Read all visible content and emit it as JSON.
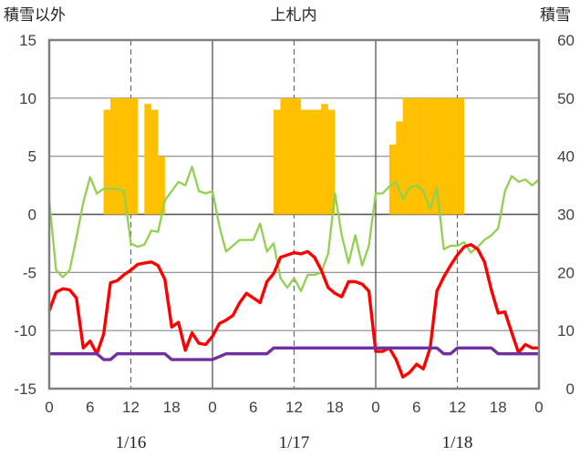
{
  "chart_data": {
    "type": "combo",
    "title": "上札内",
    "ylabel_left": "積雪以外",
    "ylabel_right": "積雪",
    "ylim_left": [
      -15,
      15
    ],
    "ylim_right": [
      0,
      60
    ],
    "yticks_left": [
      "15",
      "10",
      "5",
      "0",
      "-5",
      "-10",
      "-15"
    ],
    "yticks_right": [
      "60",
      "50",
      "40",
      "30",
      "20",
      "10",
      "0"
    ],
    "xlim": [
      0,
      72
    ],
    "xticks": [
      "0",
      "6",
      "12",
      "18",
      "0",
      "6",
      "12",
      "18",
      "0",
      "6",
      "12",
      "18",
      "0"
    ],
    "day_labels": [
      "1/16",
      "1/17",
      "1/18"
    ],
    "grid": true,
    "series": [
      {
        "name": "積雪",
        "type": "bar",
        "axis": "right",
        "color": "#FFC000",
        "x": [
          8,
          9,
          10,
          11,
          12,
          13,
          14,
          15,
          16,
          33,
          34,
          35,
          36,
          37,
          38,
          39,
          40,
          41,
          50,
          51,
          52,
          53,
          54,
          55,
          56,
          57,
          58,
          59,
          60
        ],
        "values": [
          48,
          50,
          50,
          50,
          50,
          30,
          49,
          48,
          40,
          48,
          50,
          50,
          50,
          48,
          48,
          48,
          49,
          48,
          42,
          46,
          50,
          50,
          50,
          50,
          50,
          50,
          50,
          50,
          50
        ]
      },
      {
        "name": "green",
        "type": "line",
        "axis": "left",
        "color": "#92D050",
        "x": [
          0,
          1,
          2,
          3,
          4,
          5,
          6,
          7,
          8,
          9,
          10,
          11,
          12,
          13,
          14,
          15,
          16,
          17,
          18,
          19,
          20,
          21,
          22,
          23,
          24,
          25,
          26,
          27,
          28,
          29,
          30,
          31,
          32,
          33,
          34,
          35,
          36,
          37,
          38,
          39,
          40,
          41,
          42,
          43,
          44,
          45,
          46,
          47,
          48,
          49,
          50,
          51,
          52,
          53,
          54,
          55,
          56,
          57,
          58,
          59,
          60,
          61,
          62,
          63,
          64,
          65,
          66,
          67,
          68,
          69,
          70,
          71,
          72
        ],
        "values": [
          1.2,
          -4.8,
          -5.4,
          -4.8,
          -2,
          1,
          3.2,
          1.8,
          2.2,
          2.2,
          2.2,
          2,
          -2.5,
          -2.8,
          -2.6,
          -1.4,
          -1.5,
          1.2,
          2,
          2.8,
          2.5,
          4.1,
          2,
          1.8,
          2,
          -1,
          -3.2,
          -2.7,
          -2.2,
          -2.2,
          -2.2,
          -0.8,
          -3.2,
          -2.5,
          -5.5,
          -6.3,
          -5.5,
          -6.6,
          -5.2,
          -5.2,
          -5,
          -3.4,
          1.8,
          -1.8,
          -4.2,
          -1.8,
          -4.4,
          -2.7,
          1.8,
          1.8,
          2.4,
          2.8,
          1.3,
          2.3,
          2.5,
          2,
          0.5,
          2.3,
          -3,
          -2.7,
          -2.7,
          -2.4,
          -3.3,
          -2.8,
          -2.2,
          -1.8,
          -1.2,
          2,
          3.3,
          2.8,
          3,
          2.5,
          3
        ]
      },
      {
        "name": "red",
        "type": "line",
        "axis": "left",
        "color": "#FF0000",
        "x": [
          0,
          1,
          2,
          3,
          4,
          5,
          6,
          7,
          8,
          9,
          10,
          11,
          12,
          13,
          14,
          15,
          16,
          17,
          18,
          19,
          20,
          21,
          22,
          23,
          24,
          25,
          26,
          27,
          28,
          29,
          30,
          31,
          32,
          33,
          34,
          35,
          36,
          37,
          38,
          39,
          40,
          41,
          42,
          43,
          44,
          45,
          46,
          47,
          48,
          49,
          50,
          51,
          52,
          53,
          54,
          55,
          56,
          57,
          58,
          59,
          60,
          61,
          62,
          63,
          64,
          65,
          66,
          67,
          68,
          69,
          70,
          71,
          72
        ],
        "values": [
          -8.3,
          -6.7,
          -6.4,
          -6.5,
          -7.2,
          -11.5,
          -10.9,
          -12,
          -10.3,
          -5.9,
          -5.7,
          -5.2,
          -4.8,
          -4.3,
          -4.2,
          -4.1,
          -4.4,
          -5.6,
          -9.7,
          -9.3,
          -11.7,
          -10.2,
          -11.1,
          -11.2,
          -10.5,
          -9.4,
          -9.1,
          -8.7,
          -7.6,
          -6.8,
          -7.2,
          -7.6,
          -5.8,
          -5.1,
          -3.7,
          -3.5,
          -3.3,
          -3.4,
          -3.2,
          -3.7,
          -4.8,
          -6.3,
          -6.8,
          -7.1,
          -5.8,
          -5.8,
          -6,
          -6.6,
          -11.8,
          -11.8,
          -11.5,
          -12.5,
          -14,
          -13.6,
          -12.9,
          -13.3,
          -11.5,
          -6.6,
          -5.4,
          -4.4,
          -3.5,
          -2.8,
          -2.6,
          -3,
          -4.1,
          -6.5,
          -8.5,
          -8.4,
          -10.2,
          -11.9,
          -11.2,
          -11.5,
          -11.5
        ]
      },
      {
        "name": "purple",
        "type": "line",
        "axis": "left",
        "color": "#7030A0",
        "x": [
          0,
          7,
          8,
          9,
          10,
          11,
          12,
          17,
          18,
          23,
          24,
          26,
          27,
          32,
          33,
          34,
          35,
          36,
          37,
          38,
          39,
          40,
          41,
          42,
          43,
          44,
          45,
          46,
          47,
          48,
          49,
          50,
          51,
          52,
          53,
          54,
          55,
          56,
          57,
          58,
          59,
          60,
          61,
          62,
          63,
          64,
          65,
          66,
          67,
          68,
          69,
          70,
          71,
          72
        ],
        "values": [
          -12,
          -12,
          -12.5,
          -12.5,
          -12,
          -12,
          -12,
          -12,
          -12.5,
          -12.5,
          -12.5,
          -12,
          -12,
          -12,
          -11.5,
          -11.5,
          -11.5,
          -11.5,
          -11.5,
          -11.5,
          -11.5,
          -11.5,
          -11.5,
          -11.5,
          -11.5,
          -11.5,
          -11.5,
          -11.5,
          -11.5,
          -11.5,
          -11.5,
          -11.5,
          -11.5,
          -11.5,
          -11.5,
          -11.5,
          -11.5,
          -11.5,
          -11.5,
          -12,
          -12,
          -11.5,
          -11.5,
          -11.5,
          -11.5,
          -11.5,
          -11.5,
          -12,
          -12,
          -12,
          -12,
          -12,
          -12,
          -12
        ]
      }
    ]
  }
}
